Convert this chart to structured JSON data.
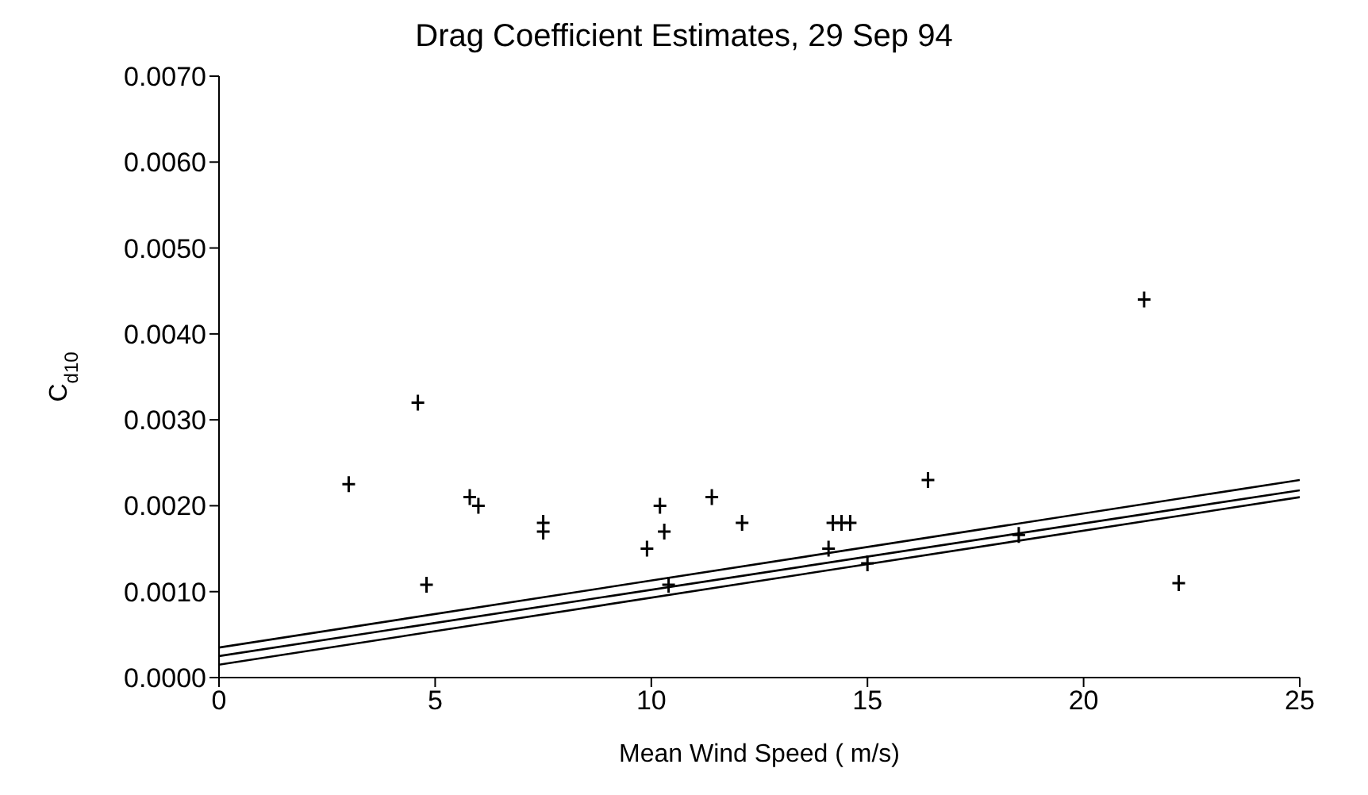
{
  "chart_data": {
    "type": "scatter",
    "title": "Drag Coefficient Estimates, 29 Sep 94",
    "xlabel": "Mean Wind Speed ( m/s)",
    "ylabel": "C$_{d10}$",
    "xlim": [
      0,
      25
    ],
    "xticks": [
      0,
      5,
      10,
      15,
      20,
      25
    ],
    "ylim": [
      0,
      0.007
    ],
    "yticks": [
      {
        "value": 0,
        "label": "0.0000"
      },
      {
        "value": 0.001,
        "label": "0.0010"
      },
      {
        "value": 0.002,
        "label": "0.0020"
      },
      {
        "value": 0.003,
        "label": "0.0030"
      },
      {
        "value": 0.004,
        "label": "0.0040"
      },
      {
        "value": 0.005,
        "label": "0.0050"
      },
      {
        "value": 0.006,
        "label": "0.0060"
      },
      {
        "value": 0.007,
        "label": "0.0070"
      }
    ],
    "grid": false,
    "legend": false,
    "marker": "cross",
    "series": [
      {
        "color": "#000000",
        "x": [
          3.0,
          4.6,
          4.8,
          5.8,
          6.0,
          7.5,
          7.5,
          9.9,
          10.2,
          10.3,
          10.4,
          11.4,
          12.1,
          14.1,
          14.2,
          14.4,
          14.6,
          15.0,
          16.4,
          18.5,
          21.4,
          22.2
        ],
        "values": [
          0.00225,
          0.0032,
          0.00108,
          0.0021,
          0.002,
          0.0018,
          0.0017,
          0.0015,
          0.002,
          0.0017,
          0.00108,
          0.0021,
          0.0018,
          0.0015,
          0.0018,
          0.0018,
          0.0018,
          0.00133,
          0.0023,
          0.00166,
          0.0044,
          0.0011
        ]
      },
      {
        "type": "line",
        "color": "#000000",
        "marker": "none",
        "x": [
          0,
          25
        ],
        "values": [
          0.00035,
          0.0023
        ]
      },
      {
        "type": "line",
        "color": "#000000",
        "marker": "none",
        "x": [
          0,
          25
        ],
        "values": [
          0.00025,
          0.00218
        ]
      },
      {
        "type": "line",
        "color": "#000000",
        "marker": "none",
        "x": [
          0,
          25
        ],
        "values": [
          0.00015,
          0.0021
        ]
      }
    ]
  }
}
